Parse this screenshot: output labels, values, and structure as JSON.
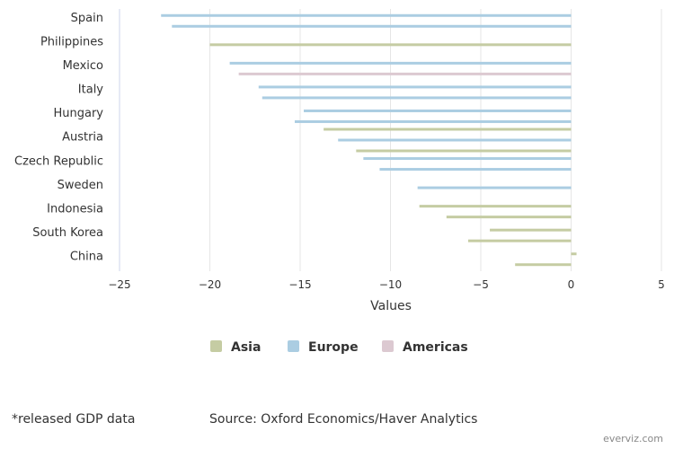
{
  "chart_data": {
    "type": "bar",
    "orientation": "horizontal",
    "categories": [
      "Spain",
      "Philippines",
      "Mexico",
      "Italy",
      "Hungary",
      "Austria",
      "Czech Republic",
      "Sweden",
      "Indonesia",
      "South Korea",
      "China"
    ],
    "series": [
      {
        "name": "Asia",
        "color": "#c5cca3",
        "values": [
          null,
          -20.0,
          null,
          null,
          null,
          -13.7,
          null,
          null,
          -8.4,
          -4.5,
          0.3
        ]
      },
      {
        "name": "Europe",
        "color": "#abcde2",
        "values": [
          -22.7,
          null,
          -18.9,
          -17.3,
          -14.8,
          -12.9,
          -11.5,
          -8.5,
          null,
          null,
          null
        ]
      },
      {
        "name": "Americas",
        "color": "#dcc9d1",
        "values": [
          null,
          null,
          -18.4,
          null,
          null,
          null,
          null,
          null,
          null,
          null,
          null
        ]
      }
    ],
    "extra_bars": {
      "Spain": [
        -22.1
      ],
      "Italy": [
        -17.1
      ],
      "Hungary": [
        -15.3
      ],
      "Austria": [
        -11.9
      ],
      "Czech Republic": [
        -10.6
      ],
      "Indonesia": [
        -6.9
      ],
      "South Korea": [
        -5.7
      ],
      "China": [
        -3.1
      ]
    },
    "xlabel": "Values",
    "xlim": [
      -25,
      5
    ],
    "xticks": [
      -25,
      -20,
      -15,
      -10,
      -5,
      0,
      5
    ],
    "xtick_labels": [
      "−25",
      "−20",
      "−15",
      "−10",
      "−5",
      "0",
      "5"
    ],
    "grid": true,
    "legend_position": "bottom"
  },
  "footnote": "*released GDP data",
  "source": "Source: Oxford Economics/Haver Analytics",
  "credit": "everviz.com"
}
